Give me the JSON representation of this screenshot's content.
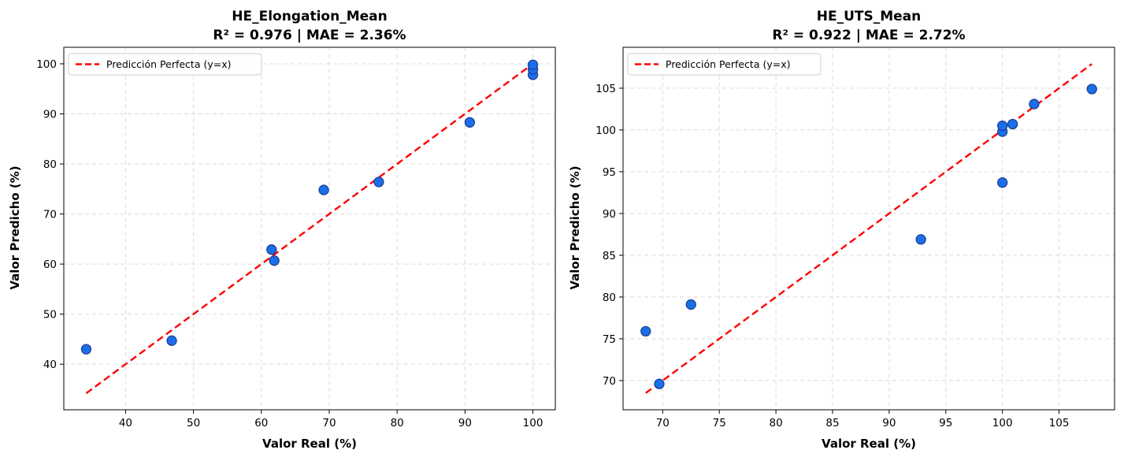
{
  "chart_data": [
    {
      "type": "scatter",
      "title_line1": "HE_Elongation_Mean",
      "title_line2": "R² = 0.976 | MAE = 2.36%",
      "xlabel": "Valor Real (%)",
      "ylabel": "Valor Predicho (%)",
      "xlim": [
        30.9,
        103.3
      ],
      "ylim": [
        30.9,
        103.3
      ],
      "xticks": [
        40,
        50,
        60,
        70,
        80,
        90,
        100
      ],
      "yticks": [
        40,
        50,
        60,
        70,
        80,
        90,
        100
      ],
      "grid": true,
      "legend_position": "top-left",
      "reference_line": {
        "name": "Predicción Perfecta (y=x)",
        "from": 34.2,
        "to": 100.0,
        "color": "#ff0000",
        "style": "dashed"
      },
      "points_color": "#1a6fe8",
      "points_edge": "#1f3f99",
      "points": [
        {
          "x": 34.2,
          "y": 43.0
        },
        {
          "x": 46.8,
          "y": 44.7
        },
        {
          "x": 61.5,
          "y": 62.9
        },
        {
          "x": 61.9,
          "y": 60.7
        },
        {
          "x": 69.2,
          "y": 74.8
        },
        {
          "x": 77.3,
          "y": 76.4
        },
        {
          "x": 90.7,
          "y": 88.3
        },
        {
          "x": 100.0,
          "y": 97.8
        },
        {
          "x": 100.0,
          "y": 98.9
        },
        {
          "x": 100.0,
          "y": 99.8
        }
      ]
    },
    {
      "type": "scatter",
      "title_line1": "HE_UTS_Mean",
      "title_line2": "R² = 0.922 | MAE = 2.72%",
      "xlabel": "Valor Real (%)",
      "ylabel": "Valor Predicho (%)",
      "xlim": [
        66.5,
        109.9
      ],
      "ylim": [
        66.5,
        109.9
      ],
      "xticks": [
        70,
        75,
        80,
        85,
        90,
        95,
        100,
        105
      ],
      "yticks": [
        70,
        75,
        80,
        85,
        90,
        95,
        100,
        105
      ],
      "grid": true,
      "legend_position": "top-left",
      "reference_line": {
        "name": "Predicción Perfecta (y=x)",
        "from": 68.5,
        "to": 107.9,
        "color": "#ff0000",
        "style": "dashed"
      },
      "points_color": "#1a6fe8",
      "points_edge": "#1f3f99",
      "points": [
        {
          "x": 68.5,
          "y": 75.9
        },
        {
          "x": 69.7,
          "y": 69.6
        },
        {
          "x": 72.5,
          "y": 79.1
        },
        {
          "x": 92.8,
          "y": 86.9
        },
        {
          "x": 100.0,
          "y": 93.7
        },
        {
          "x": 100.0,
          "y": 99.8
        },
        {
          "x": 100.0,
          "y": 100.5
        },
        {
          "x": 100.9,
          "y": 100.7
        },
        {
          "x": 102.8,
          "y": 103.1
        },
        {
          "x": 107.9,
          "y": 104.9
        }
      ]
    }
  ]
}
